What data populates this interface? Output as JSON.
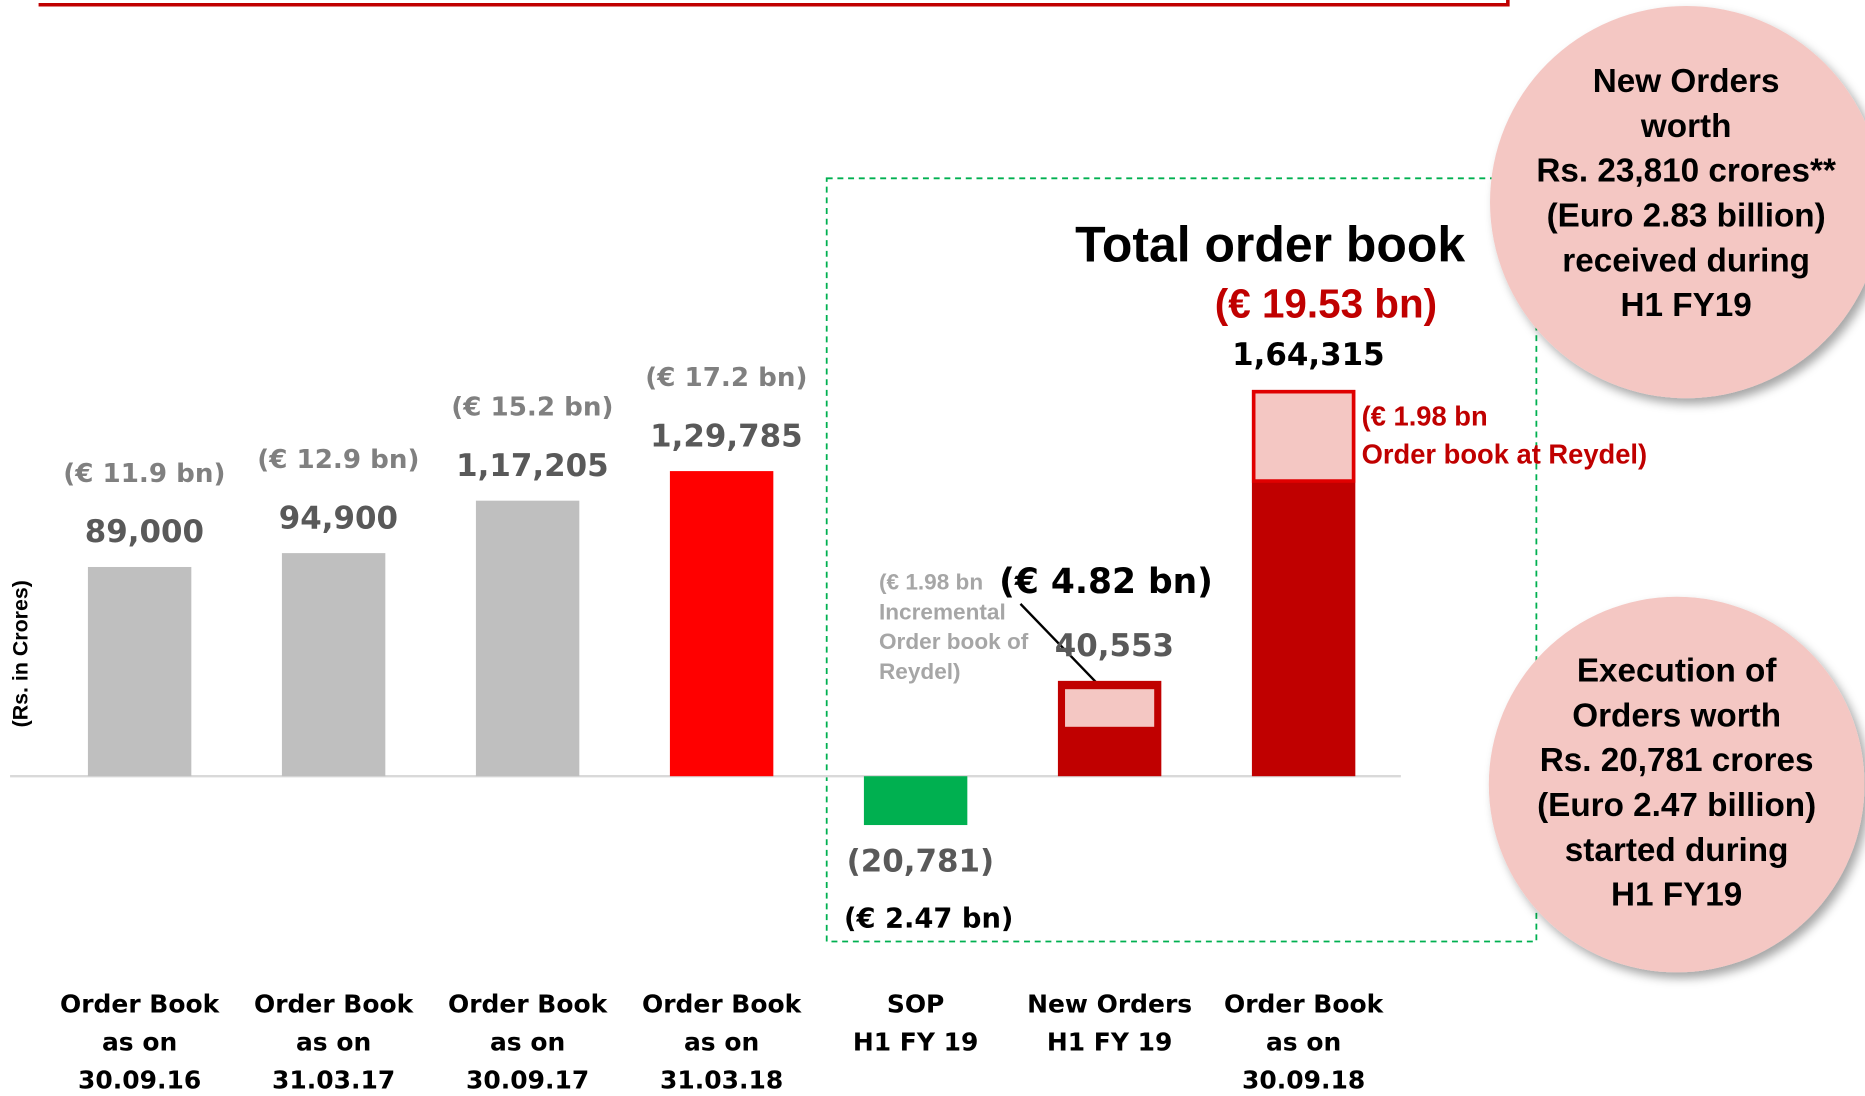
{
  "chart_data": {
    "type": "bar",
    "title": "Total order book",
    "subtitle": "(€ 19.53 bn)",
    "y_label": "(Rs. in Crores)",
    "categories": [
      [
        "Order Book",
        "as on",
        "30.09.16"
      ],
      [
        "Order Book",
        "as on",
        "31.03.17"
      ],
      [
        "Order Book",
        "as on",
        "30.09.17"
      ],
      [
        "Order Book",
        "as on",
        "31.03.18"
      ],
      [
        "SOP",
        "H1 FY 19"
      ],
      [
        "New Orders",
        "H1 FY 19"
      ],
      [
        "Order Book",
        "as on",
        "30.09.18"
      ]
    ],
    "values": [
      89000,
      94900,
      117205,
      129785,
      -20781,
      40553,
      164315
    ],
    "value_labels": [
      "89,000",
      "94,900",
      "1,17,205",
      "1,29,785",
      "(20,781)",
      "40,553",
      "1,64,315"
    ],
    "euro_labels": [
      "(€ 11.9 bn)",
      "(€ 12.9 bn)",
      "(€ 15.2 bn)",
      "(€ 17.2 bn)",
      "(€ 2.47 bn)",
      "(€ 4.82 bn)",
      null
    ],
    "colors": [
      "#bfbfbf",
      "#bfbfbf",
      "#bfbfbf",
      "#ff0000",
      "#00b050",
      "#c00000",
      "#c00000"
    ],
    "reydel_values": [
      null,
      null,
      null,
      null,
      null,
      16000,
      38000
    ],
    "reydel_color": "#f4c7c3",
    "ylim": [
      -30000,
      180000
    ],
    "annotations": {
      "incremental": [
        "(€ 1.98 bn",
        "Incremental",
        "Order book of",
        "Reydel)"
      ],
      "reydel": [
        "(€ 1.98 bn",
        "Order book at Reydel)"
      ]
    },
    "notes": [
      [
        "New Orders",
        "worth",
        "Rs. 23,810 crores**",
        "(Euro 2.83 billion)",
        "received during",
        "H1 FY19"
      ],
      [
        "Execution of",
        "Orders worth",
        "Rs. 20,781 crores",
        "(Euro 2.47 billion)",
        "started during",
        "H1 FY19"
      ]
    ]
  }
}
